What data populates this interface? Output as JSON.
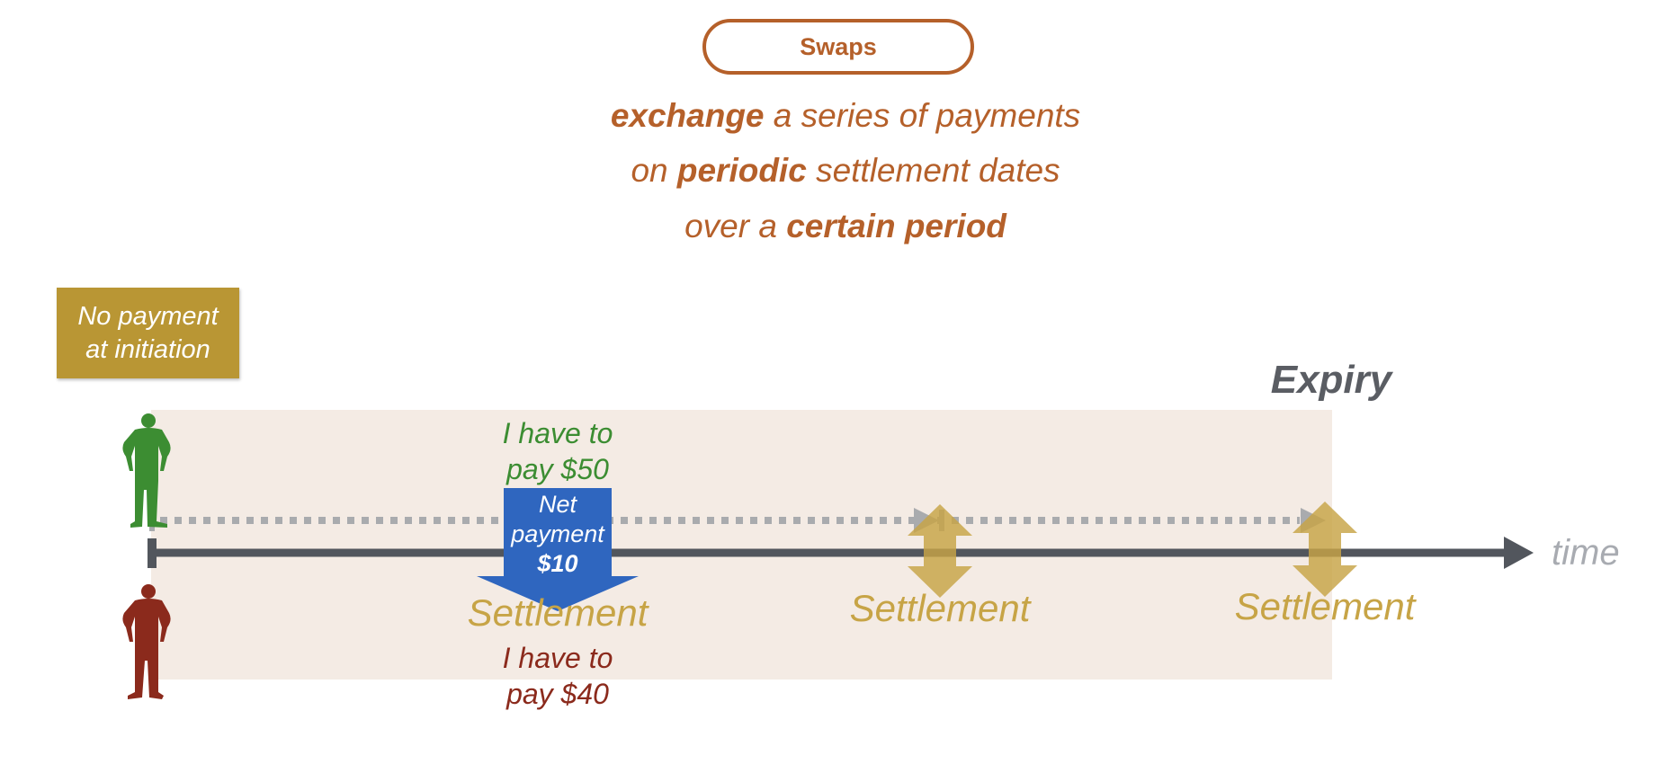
{
  "title": "Swaps",
  "subtitle": {
    "line1": {
      "bold": "exchange",
      "rest": " a series of payments"
    },
    "line2": {
      "pre": "on ",
      "bold": "periodic",
      "rest": " settlement dates"
    },
    "line3": {
      "pre": "over a ",
      "bold": "certain period"
    }
  },
  "no_payment": {
    "line1": "No payment",
    "line2": "at initiation"
  },
  "expiry_label": "Expiry",
  "time_label": "time",
  "party_a": {
    "line1": "I have to",
    "line2": "pay $50"
  },
  "party_b": {
    "line1": "I have to",
    "line2": "pay $40"
  },
  "net_payment": {
    "line1": "Net",
    "line2": "payment",
    "amount": "$10"
  },
  "settlements": [
    "Settlement",
    "Settlement",
    "Settlement"
  ],
  "colors": {
    "accent": "#b5602a",
    "gold": "#b99634",
    "settlement": "#c7a446",
    "party_a": "#3c8d32",
    "party_b": "#8b2a1c",
    "net_payment": "#2f66bf",
    "timeline": "#52565d",
    "dotted_line": "#a9abae",
    "period_band": "#f4ebe4"
  },
  "icons": [
    "person-green-icon",
    "person-red-icon",
    "arrow-down-icon",
    "double-arrow-icon",
    "arrow-right-icon"
  ]
}
